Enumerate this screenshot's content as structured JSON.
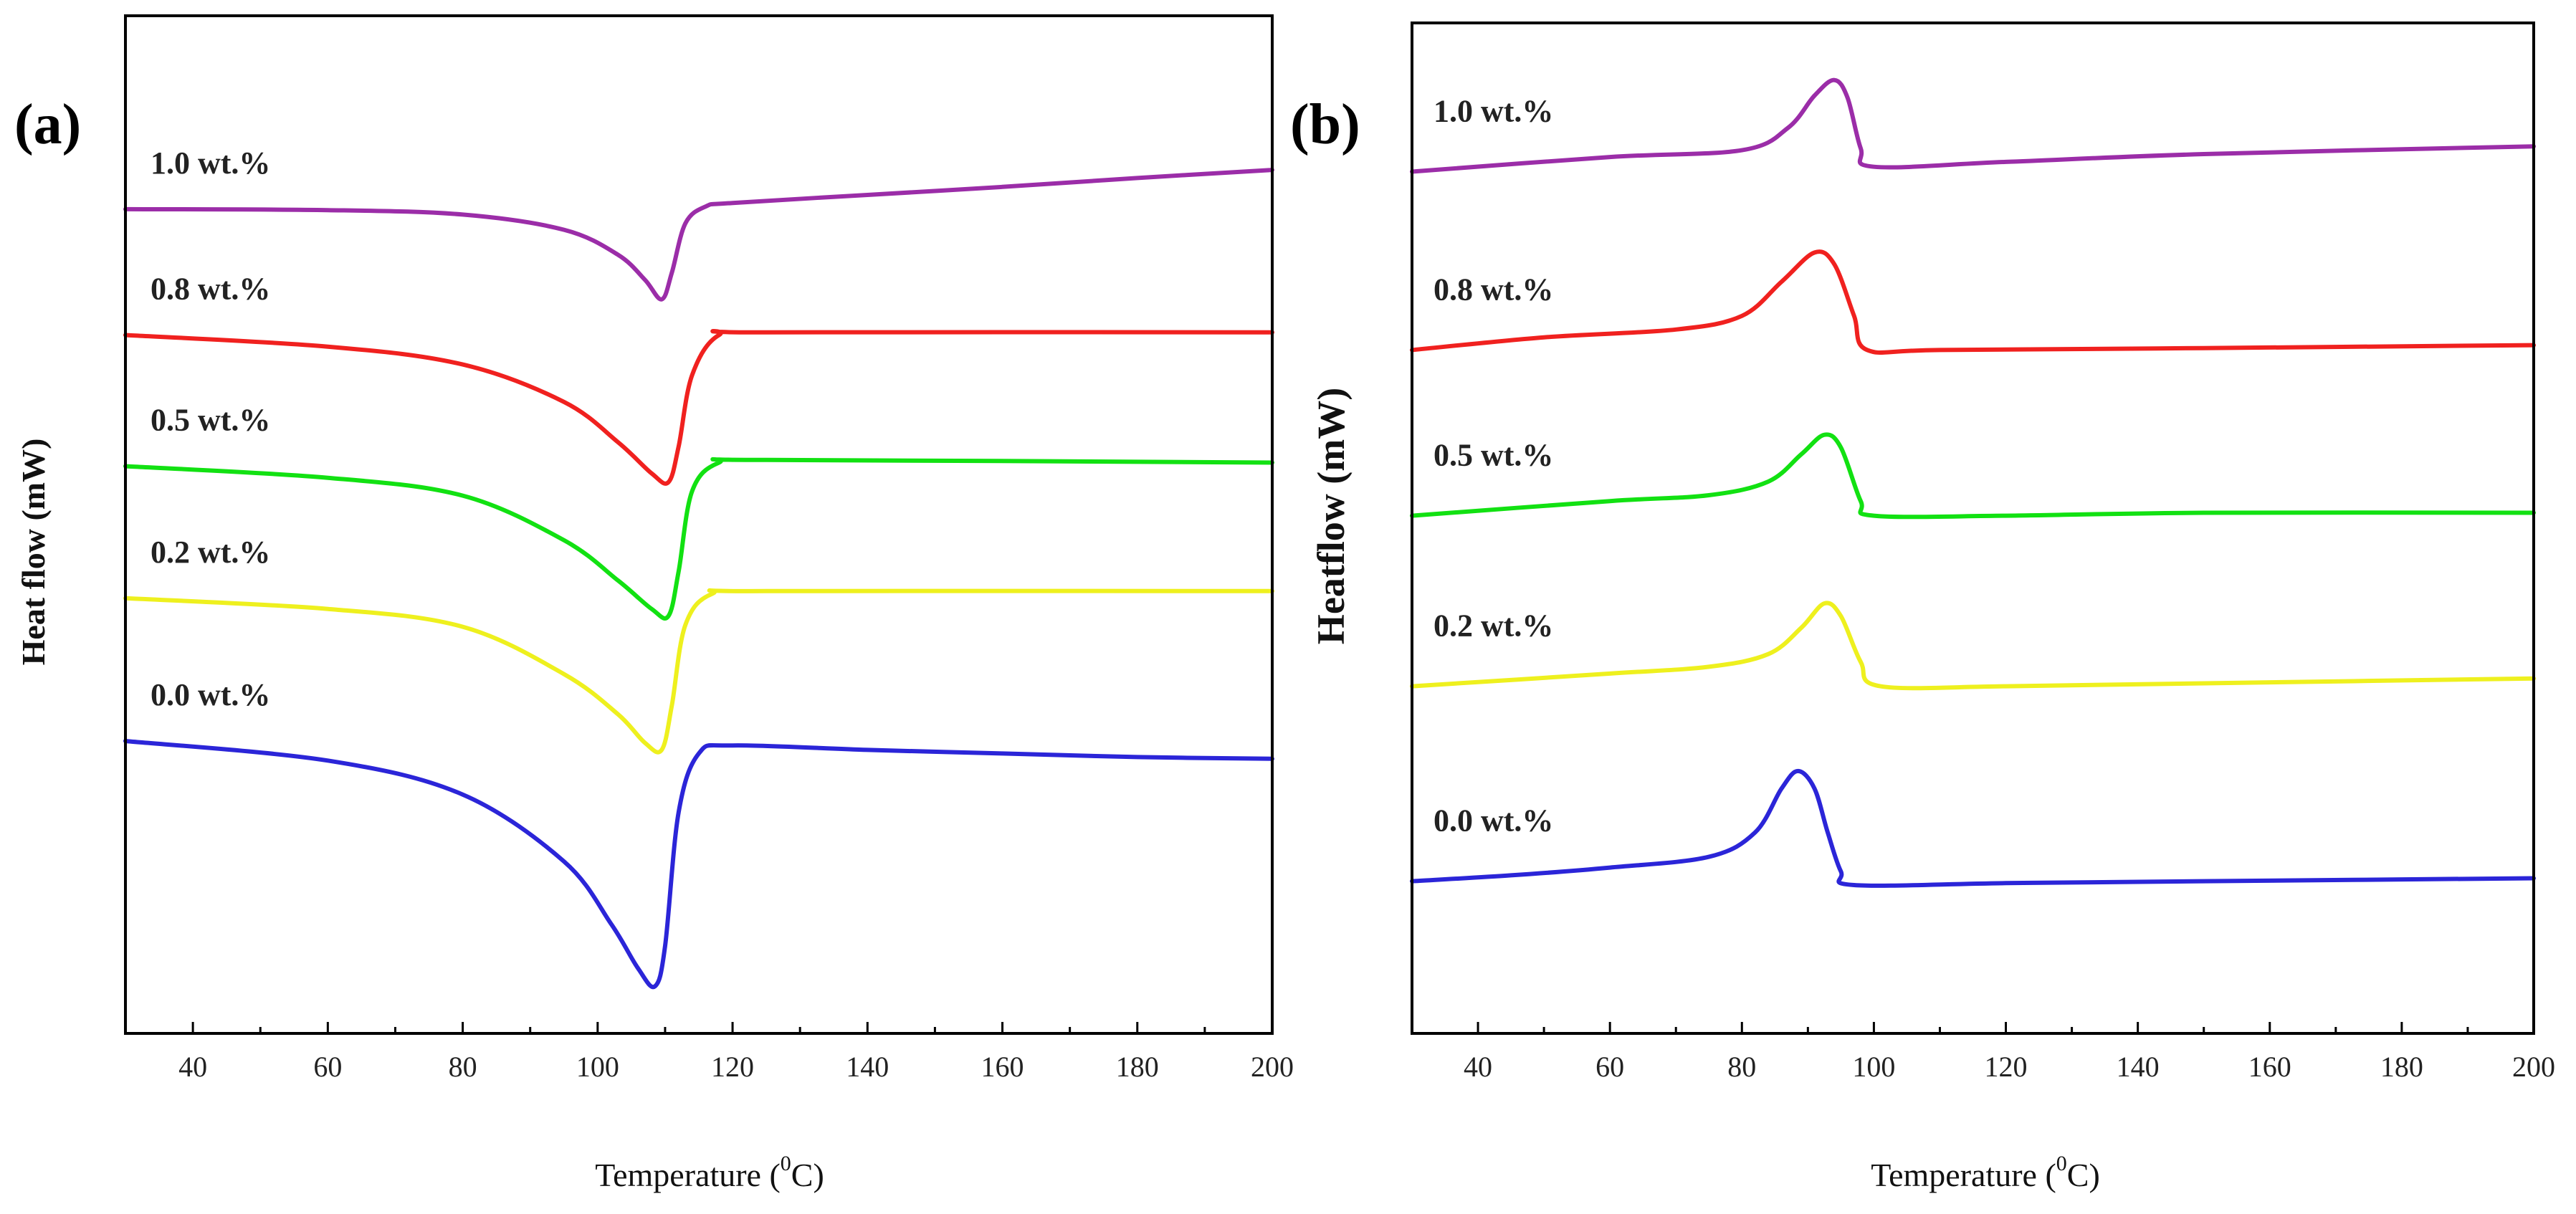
{
  "colors": {
    "1.0": "#9b2da8",
    "0.8": "#f0211f",
    "0.5": "#12e112",
    "0.2": "#eef01e",
    "0.0": "#2b25d8"
  },
  "chart_data": [
    {
      "panel_label": "(a)",
      "type": "line",
      "xlabel": "Temperature (",
      "xlabel_sup": "0",
      "xlabel_unit": "C)",
      "ylabel": "Heat flow (mW)",
      "xlim": [
        30,
        200
      ],
      "ylim": [
        0,
        100
      ],
      "xticks": [
        40,
        60,
        80,
        100,
        120,
        140,
        160,
        180,
        200
      ],
      "series": [
        {
          "name": "1.0 wt.%",
          "color": "#9b2da8",
          "x": [
            30,
            60,
            80,
            95,
            103,
            107,
            109.5,
            111,
            113,
            116,
            120,
            140,
            160,
            180,
            200
          ],
          "y": [
            88.6,
            88.5,
            88.0,
            86.3,
            83.5,
            80.7,
            78.5,
            81.5,
            87.0,
            88.9,
            89.3,
            90.2,
            91.1,
            92.1,
            93.0
          ]
        },
        {
          "name": "0.8 wt.%",
          "color": "#f0211f",
          "x": [
            30,
            60,
            80,
            95,
            103,
            108,
            110.5,
            112,
            114,
            118,
            125,
            200
          ],
          "y": [
            74.5,
            73.2,
            71.2,
            67.0,
            62.5,
            59.0,
            58.0,
            62.0,
            70.0,
            74.5,
            74.8,
            74.8
          ]
        },
        {
          "name": "0.5 wt.%",
          "color": "#12e112",
          "x": [
            30,
            60,
            80,
            95,
            103,
            108,
            110.5,
            112,
            114,
            118,
            125,
            200
          ],
          "y": [
            59.8,
            58.5,
            56.5,
            51.5,
            47.0,
            43.8,
            43.0,
            48.0,
            57.0,
            60.2,
            60.5,
            60.2
          ]
        },
        {
          "name": "0.2 wt.%",
          "color": "#eef01e",
          "x": [
            30,
            60,
            80,
            95,
            103,
            107,
            109.5,
            111,
            113,
            117,
            125,
            200
          ],
          "y": [
            45.0,
            43.8,
            41.8,
            36.5,
            32.0,
            28.8,
            28.0,
            33.0,
            42.0,
            45.5,
            45.8,
            45.8
          ]
        },
        {
          "name": "0.0 wt.%",
          "color": "#2b25d8",
          "x": [
            30,
            60,
            80,
            95,
            102,
            106,
            108.5,
            110,
            112,
            115,
            120,
            140,
            160,
            180,
            200
          ],
          "y": [
            29.0,
            26.8,
            23.0,
            15.5,
            8.5,
            3.5,
            1.5,
            6.0,
            21.0,
            27.6,
            28.5,
            28.0,
            27.6,
            27.2,
            27.0
          ]
        }
      ],
      "annotations": [
        "1.0 wt.%",
        "0.8 wt.%",
        "0.5 wt.%",
        "0.2 wt.%",
        "0.0 wt.%"
      ]
    },
    {
      "panel_label": "(b)",
      "type": "line",
      "xlabel": "Temperature (",
      "xlabel_sup": "0",
      "xlabel_unit": "C)",
      "ylabel": "Heatflow (mW)",
      "xlim": [
        30,
        200
      ],
      "ylim": [
        0,
        100
      ],
      "xticks": [
        40,
        60,
        80,
        100,
        120,
        140,
        160,
        180,
        200
      ],
      "series": [
        {
          "name": "1.0 wt.%",
          "color": "#9b2da8",
          "x": [
            30,
            60,
            80,
            87,
            91,
            94,
            96,
            98,
            100,
            120,
            150,
            200
          ],
          "y": [
            86.8,
            88.3,
            89.0,
            91.3,
            94.6,
            96.2,
            94.4,
            89.2,
            87.3,
            87.8,
            88.6,
            89.4
          ]
        },
        {
          "name": "0.8 wt.%",
          "color": "#f0211f",
          "x": [
            30,
            50,
            70,
            80,
            86,
            91,
            94,
            97,
            99,
            110,
            150,
            200
          ],
          "y": [
            68.5,
            69.8,
            70.6,
            72.0,
            75.5,
            78.5,
            77.3,
            72.0,
            68.5,
            68.5,
            68.7,
            69.0
          ]
        },
        {
          "name": "0.5 wt.%",
          "color": "#12e112",
          "x": [
            30,
            60,
            75,
            84,
            89,
            92.5,
            95,
            98,
            100,
            120,
            150,
            200
          ],
          "y": [
            51.5,
            53.0,
            53.6,
            55.0,
            57.8,
            59.8,
            58.5,
            53.0,
            51.5,
            51.5,
            51.8,
            51.8
          ]
        },
        {
          "name": "0.2 wt.%",
          "color": "#eef01e",
          "x": [
            30,
            60,
            75,
            84,
            89,
            92.5,
            95,
            98,
            101,
            120,
            150,
            200
          ],
          "y": [
            34.0,
            35.3,
            36.0,
            37.3,
            40.0,
            42.5,
            41.2,
            36.5,
            34.0,
            34.0,
            34.3,
            34.8
          ]
        },
        {
          "name": "0.0 wt.%",
          "color": "#2b25d8",
          "x": [
            30,
            45,
            60,
            75,
            82,
            86,
            88.5,
            91,
            93,
            95,
            97,
            120,
            150,
            200
          ],
          "y": [
            14.0,
            14.6,
            15.4,
            16.5,
            19.0,
            23.5,
            25.3,
            23.5,
            19.0,
            15.0,
            13.6,
            13.8,
            14.0,
            14.3
          ]
        }
      ],
      "annotations": [
        "1.0 wt.%",
        "0.8 wt.%",
        "0.5 wt.%",
        "0.2 wt.%",
        "0.0 wt.%"
      ]
    }
  ]
}
